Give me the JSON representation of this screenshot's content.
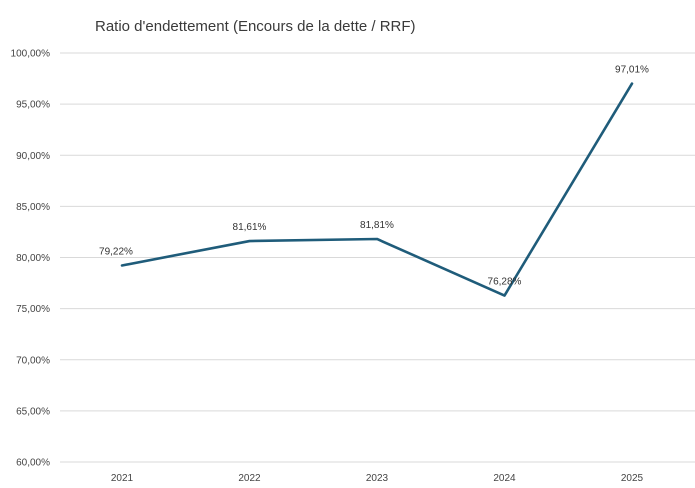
{
  "chart_data": {
    "type": "line",
    "title": "Ratio d'endettement (Encours de la dette / RRF)",
    "xlabel": "",
    "ylabel": "",
    "categories": [
      "2021",
      "2022",
      "2023",
      "2024",
      "2025"
    ],
    "series": [
      {
        "values": [
          79.22,
          81.61,
          81.81,
          76.28,
          97.01
        ],
        "labels": [
          "79,22%",
          "81,61%",
          "81,81%",
          "76,28%",
          "97,01%"
        ],
        "color": "#1f5c7a"
      }
    ],
    "ylim": [
      60,
      100
    ],
    "yticks": [
      {
        "value": 60,
        "label": "60,00%"
      },
      {
        "value": 65,
        "label": "65,00%"
      },
      {
        "value": 70,
        "label": "70,00%"
      },
      {
        "value": 75,
        "label": "75,00%"
      },
      {
        "value": 80,
        "label": "80,00%"
      },
      {
        "value": 85,
        "label": "85,00%"
      },
      {
        "value": 90,
        "label": "90,00%"
      },
      {
        "value": 95,
        "label": "95,00%"
      },
      {
        "value": 100,
        "label": "100,00%"
      }
    ],
    "grid": true,
    "legend": "none",
    "colors": {
      "gridline": "#d9d9d9",
      "axis_text": "#444444"
    }
  }
}
